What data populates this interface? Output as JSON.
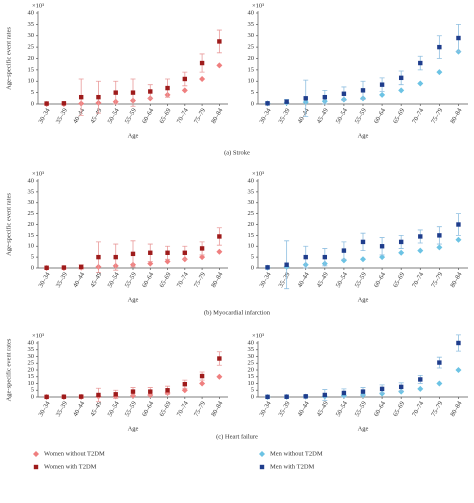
{
  "captions": [
    "(a) Stroke",
    "(b) Myocardial infarction",
    "(c) Heart failure"
  ],
  "chart_data": [
    {
      "type": "scatter",
      "ylabel": "Age-specific event rates",
      "xlabel": "Age",
      "y_unit": "×10³",
      "categories": [
        "30–34",
        "35–39",
        "40–44",
        "45–49",
        "50–54",
        "55–59",
        "60–64",
        "65–69",
        "70–74",
        "75–79",
        "80–84"
      ],
      "ylim": [
        0,
        40
      ],
      "yticks": [
        0,
        5,
        10,
        15,
        20,
        25,
        30,
        35,
        40
      ],
      "series": [
        {
          "name": "Women without T2DM",
          "color": "#ef7f7f",
          "marker": "diamond",
          "values": [
            0,
            0,
            0.2,
            0.5,
            1,
            1.5,
            2.5,
            4,
            6,
            11,
            17
          ]
        },
        {
          "name": "Women with T2DM",
          "color": "#9e1b1b",
          "marker": "square",
          "error_color": "#e99a9a",
          "values": [
            0.2,
            0.3,
            3,
            3,
            5,
            5,
            5.5,
            7,
            11,
            18,
            27.5
          ],
          "errors": [
            0,
            0,
            8,
            7,
            5,
            6,
            3,
            4,
            3,
            4,
            5
          ]
        }
      ]
    },
    {
      "type": "scatter",
      "xlabel": "Age",
      "y_unit": "×10³",
      "categories": [
        "30–34",
        "35–39",
        "40–44",
        "45–49",
        "50–54",
        "55–59",
        "60–64",
        "65–69",
        "70–74",
        "75–79",
        "80–84"
      ],
      "ylim": [
        0,
        40
      ],
      "yticks": [
        0,
        5,
        10,
        15,
        20,
        25,
        30,
        35,
        40
      ],
      "series": [
        {
          "name": "Men without T2DM",
          "color": "#6cc3e4",
          "marker": "diamond",
          "values": [
            0.3,
            0.5,
            0.8,
            1.2,
            2,
            2.5,
            4,
            6,
            9,
            14,
            23
          ]
        },
        {
          "name": "Men with T2DM",
          "color": "#1f3d8c",
          "marker": "square",
          "error_color": "#8fbfe0",
          "values": [
            0.3,
            1,
            2.5,
            3,
            4.5,
            6,
            8.5,
            11.5,
            18,
            25,
            29
          ],
          "errors": [
            0,
            1,
            8,
            3,
            3,
            4,
            3,
            3,
            3,
            5,
            6
          ]
        }
      ]
    },
    {
      "type": "scatter",
      "ylabel": "Age-specific event rates",
      "xlabel": "Age",
      "y_unit": "×10³",
      "categories": [
        "30–34",
        "35–39",
        "40–44",
        "45–49",
        "50–54",
        "55–59",
        "60–64",
        "65–69",
        "70–74",
        "75–79",
        "80–84"
      ],
      "ylim": [
        0,
        40
      ],
      "yticks": [
        0,
        5,
        10,
        15,
        20,
        25,
        30,
        35,
        40
      ],
      "series": [
        {
          "color": "#ef7f7f",
          "marker": "diamond",
          "values": [
            0,
            0,
            0.2,
            0.5,
            1,
            1.5,
            2,
            3,
            4,
            5,
            7.5
          ]
        },
        {
          "color": "#9e1b1b",
          "marker": "square",
          "error_color": "#e99a9a",
          "values": [
            0.1,
            0.2,
            0.5,
            5,
            5,
            6.5,
            7,
            7,
            7,
            9,
            14.5
          ],
          "errors": [
            0,
            0,
            1,
            7,
            6,
            6,
            4,
            3,
            3,
            3,
            4
          ]
        }
      ]
    },
    {
      "type": "scatter",
      "xlabel": "Age",
      "y_unit": "×10³",
      "categories": [
        "30–34",
        "35–39",
        "40–44",
        "45–49",
        "50–54",
        "55–59",
        "60–64",
        "65–69",
        "70–74",
        "75–79",
        "80–84"
      ],
      "ylim": [
        0,
        40
      ],
      "yticks": [
        0,
        5,
        10,
        15,
        20,
        25,
        30,
        35,
        40
      ],
      "series": [
        {
          "color": "#6cc3e4",
          "marker": "diamond",
          "values": [
            0.2,
            0.5,
            1.5,
            2,
            3.5,
            4,
            5,
            7,
            8,
            9.5,
            13
          ]
        },
        {
          "color": "#1f3d8c",
          "marker": "square",
          "error_color": "#8fbfe0",
          "values": [
            0.3,
            1.5,
            5,
            5,
            8,
            12,
            10,
            12,
            14.5,
            15,
            20
          ],
          "errors": [
            0,
            11,
            5,
            4,
            4,
            4,
            4,
            3,
            3,
            4,
            5
          ]
        }
      ]
    },
    {
      "type": "scatter",
      "ylabel": "Age-specific event rates",
      "xlabel": "Age",
      "y_unit": "×10³",
      "categories": [
        "30–34",
        "35–39",
        "40–44",
        "45–49",
        "50–54",
        "55–59",
        "60–64",
        "65–69",
        "70–74",
        "75–79",
        "80–84"
      ],
      "ylim": [
        0,
        40
      ],
      "yticks": [
        0,
        5,
        10,
        15,
        20,
        25,
        30,
        35,
        40
      ],
      "series": [
        {
          "color": "#ef7f7f",
          "marker": "diamond",
          "values": [
            0,
            0,
            0.1,
            0.5,
            0.5,
            1,
            1.5,
            3,
            5,
            10,
            15
          ]
        },
        {
          "color": "#9e1b1b",
          "marker": "square",
          "error_color": "#e99a9a",
          "values": [
            0.1,
            0.2,
            0.3,
            1.5,
            2,
            4,
            4,
            5,
            9.5,
            15.5,
            28.5
          ],
          "errors": [
            0,
            0,
            1,
            5,
            3,
            3,
            3,
            3,
            3,
            3,
            5
          ]
        }
      ]
    },
    {
      "type": "scatter",
      "xlabel": "Age",
      "y_unit": "×10³",
      "categories": [
        "30–34",
        "35–39",
        "40–44",
        "45–49",
        "50–54",
        "55–59",
        "60–64",
        "65–69",
        "70–74",
        "75–79",
        "80–84"
      ],
      "ylim": [
        0,
        40
      ],
      "yticks": [
        0,
        5,
        10,
        15,
        20,
        25,
        30,
        35,
        40
      ],
      "series": [
        {
          "color": "#6cc3e4",
          "marker": "diamond",
          "values": [
            0,
            0.1,
            0.3,
            0.5,
            1,
            1.5,
            2.5,
            4,
            6,
            10,
            20
          ]
        },
        {
          "color": "#1f3d8c",
          "marker": "square",
          "error_color": "#8fbfe0",
          "values": [
            0.1,
            0.2,
            0.5,
            1.5,
            3,
            4,
            6,
            7.5,
            13,
            25.5,
            40
          ],
          "errors": [
            0,
            0,
            0.5,
            4,
            3,
            3,
            3,
            3,
            3,
            4,
            6
          ]
        }
      ]
    }
  ]
}
